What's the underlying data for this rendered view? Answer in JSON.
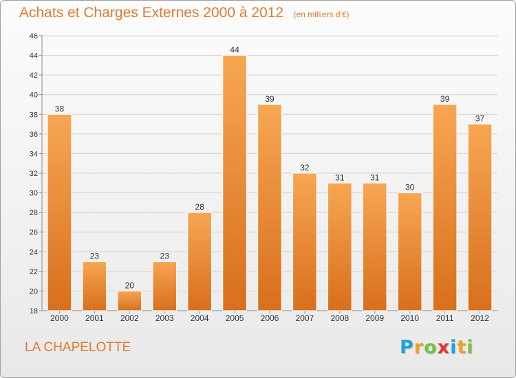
{
  "title": "Achats et Charges Externes 2000 à 2012",
  "unit_note": "(en milliers d'€)",
  "place_name": "LA CHAPELOTTE",
  "logo": {
    "letters": [
      "P",
      "r",
      "o",
      "x",
      "i",
      "t",
      "i"
    ],
    "colors": [
      "#1aa3d9",
      "#f0a020",
      "#7ac143",
      "#e5322d",
      "#1aa3d9",
      "#f0a020",
      "#7ac143"
    ]
  },
  "colors": {
    "bar_top": "#f7a653",
    "bar_bottom": "#d86f1c",
    "text_accent": "#e07a30"
  },
  "chart_data": {
    "type": "bar",
    "categories": [
      "2000",
      "2001",
      "2002",
      "2003",
      "2004",
      "2005",
      "2006",
      "2007",
      "2008",
      "2009",
      "2010",
      "2011",
      "2012"
    ],
    "values": [
      38,
      23,
      20,
      23,
      28,
      44,
      39,
      32,
      31,
      31,
      30,
      39,
      37
    ],
    "ylim": [
      18,
      46
    ],
    "yticks": [
      18,
      20,
      22,
      24,
      26,
      28,
      30,
      32,
      34,
      36,
      38,
      40,
      42,
      44,
      46
    ],
    "xlabel": "",
    "ylabel": "",
    "grid": true,
    "data_labels": true
  }
}
